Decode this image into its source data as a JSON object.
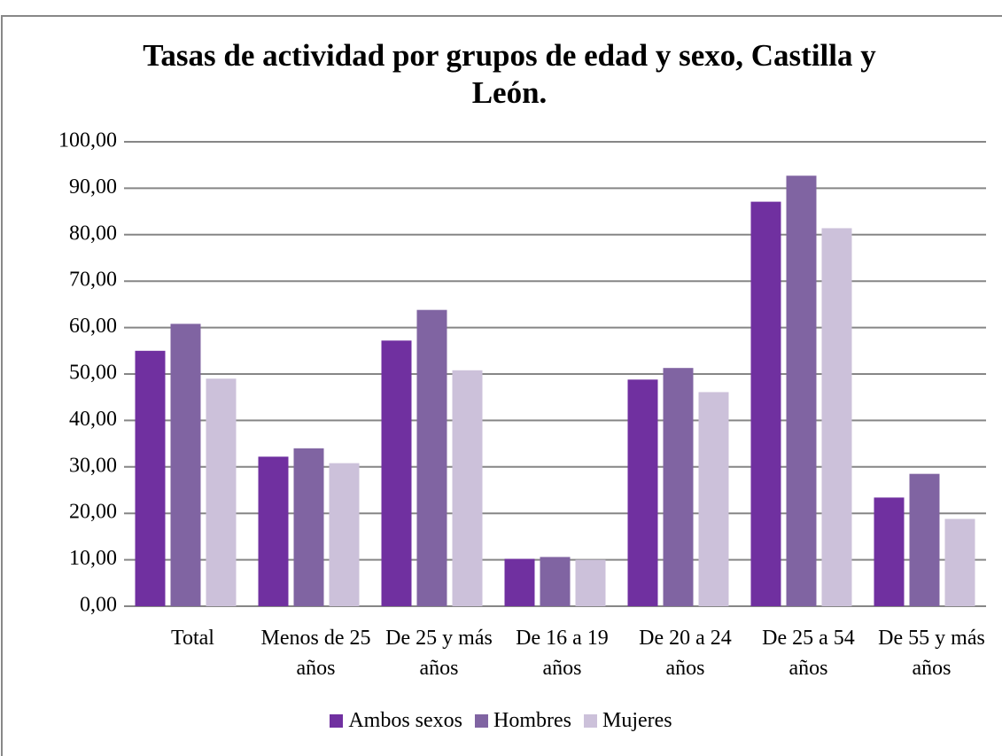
{
  "chart_data": {
    "type": "bar",
    "title": "Tasas de actividad por grupos de edad y sexo, Castilla y León.",
    "categories": [
      "Total",
      "Menos de 25 años",
      "De 25 y más años",
      "De 16 a 19 años",
      "De 20 a 24 años",
      "De 25 a 54 años",
      "De 55 y más años"
    ],
    "series": [
      {
        "name": "Ambos sexos",
        "color": "#7030a0",
        "values": [
          55.0,
          32.2,
          57.2,
          10.2,
          48.8,
          87.1,
          23.4
        ]
      },
      {
        "name": "Hombres",
        "color": "#8064a2",
        "values": [
          60.8,
          34.0,
          63.8,
          10.6,
          51.3,
          92.7,
          28.5
        ]
      },
      {
        "name": "Mujeres",
        "color": "#ccc1da",
        "values": [
          49.0,
          30.8,
          50.8,
          10.0,
          46.1,
          81.4,
          18.8
        ]
      }
    ],
    "ylim": [
      0,
      100
    ],
    "yticks": [
      {
        "value": 0,
        "label": "0,00"
      },
      {
        "value": 10,
        "label": "10,00"
      },
      {
        "value": 20,
        "label": "20,00"
      },
      {
        "value": 30,
        "label": "30,00"
      },
      {
        "value": 40,
        "label": "40,00"
      },
      {
        "value": 50,
        "label": "50,00"
      },
      {
        "value": 60,
        "label": "60,00"
      },
      {
        "value": 70,
        "label": "70,00"
      },
      {
        "value": 80,
        "label": "80,00"
      },
      {
        "value": 90,
        "label": "90,00"
      },
      {
        "value": 100,
        "label": "100,00"
      }
    ],
    "grid": true,
    "legend": "bottom"
  }
}
